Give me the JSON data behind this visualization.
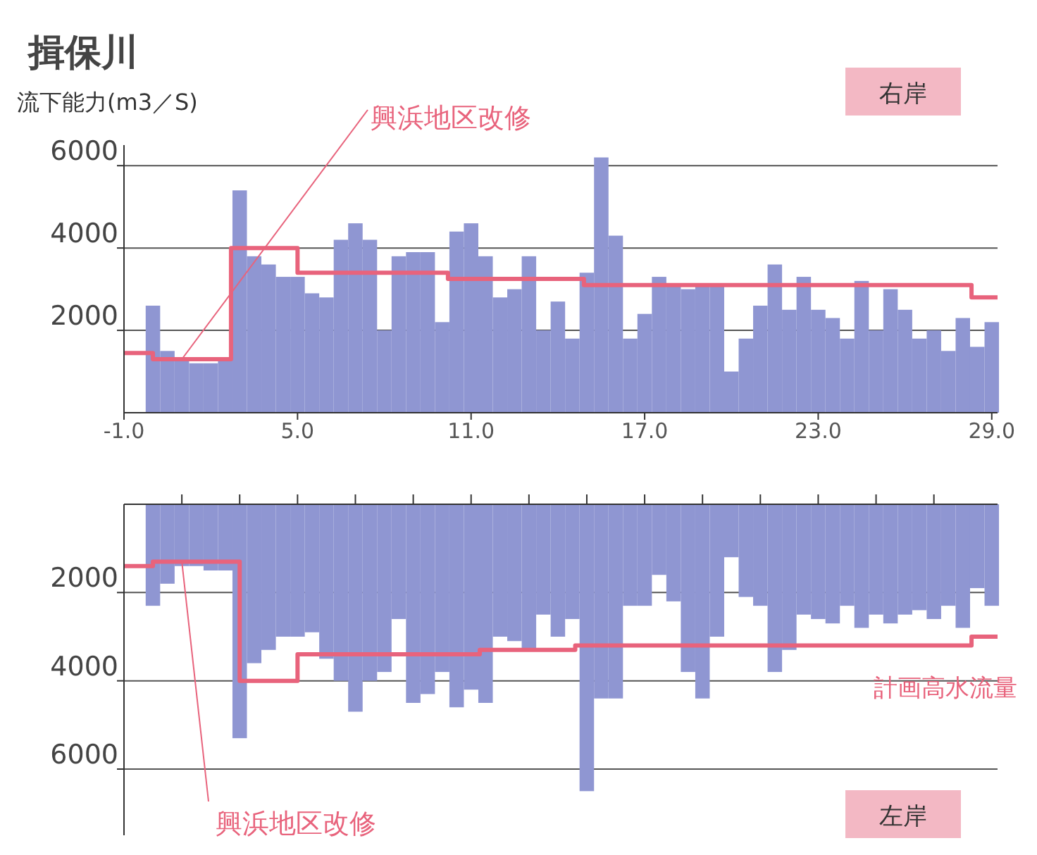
{
  "chart_data": [
    {
      "type": "bar",
      "title": "揖保川",
      "ylabel": "流下能力(m3／S)",
      "xlim": [
        -1,
        29.2
      ],
      "xticks": [
        {
          "value": -1,
          "label": "-1.0"
        },
        {
          "value": 5,
          "label": "5.0"
        },
        {
          "value": 11,
          "label": "11.0"
        },
        {
          "value": 17,
          "label": "17.0"
        },
        {
          "value": 23,
          "label": "23.0"
        },
        {
          "value": 29,
          "label": "29.0"
        }
      ],
      "ylim": [
        0,
        6500
      ],
      "yticks": [
        2000,
        4000,
        6000
      ],
      "grid": "y",
      "legend": false,
      "annotations": [
        "右岸",
        {
          "text": "興浜地区改修",
          "x": 1.0,
          "y": 1300
        }
      ],
      "series": [
        {
          "color": "#8f96d2",
          "x": [
            0,
            0.5,
            1,
            1.5,
            2,
            2.5,
            3,
            3.5,
            4,
            4.5,
            5,
            5.5,
            6,
            6.5,
            7,
            7.5,
            8,
            8.5,
            9,
            9.5,
            10,
            10.5,
            11,
            11.5,
            12,
            12.5,
            13,
            13.5,
            14,
            14.5,
            15,
            15.5,
            16,
            16.5,
            17,
            17.5,
            18,
            18.5,
            19,
            19.5,
            20,
            20.5,
            21,
            21.5,
            22,
            22.5,
            23,
            23.5,
            24,
            24.5,
            25,
            25.5,
            26,
            26.5,
            27,
            27.5,
            28,
            28.5,
            29
          ],
          "values": [
            2600,
            1500,
            1300,
            1200,
            1200,
            1300,
            5400,
            3800,
            3600,
            3300,
            3300,
            2900,
            2800,
            4200,
            4600,
            4200,
            2000,
            3800,
            3900,
            3900,
            2200,
            4400,
            4600,
            3800,
            2800,
            3000,
            3800,
            2000,
            2700,
            1800,
            3400,
            6200,
            4300,
            1800,
            2400,
            3300,
            3100,
            3000,
            3100,
            3100,
            1000,
            1800,
            2600,
            3600,
            2500,
            3300,
            2500,
            2300,
            1800,
            3200,
            2000,
            3000,
            2500,
            1800,
            2000,
            1500,
            2300,
            1600,
            2200
          ]
        },
        {
          "type": "step",
          "color": "#e8637c",
          "x": [
            -1,
            0,
            2.7,
            5.0,
            10.2,
            14.9,
            28.3,
            29.2
          ],
          "values": [
            1450,
            1300,
            4000,
            3400,
            3250,
            3100,
            2800,
            2800
          ]
        }
      ]
    },
    {
      "type": "bar",
      "xlim": [
        -1,
        29.2
      ],
      "xticks": [
        {
          "value": 1,
          "label": null
        },
        {
          "value": 3,
          "label": null
        },
        {
          "value": 5,
          "label": null
        },
        {
          "value": 7,
          "label": null
        },
        {
          "value": 9,
          "label": null
        },
        {
          "value": 11,
          "label": null
        },
        {
          "value": 13,
          "label": null
        },
        {
          "value": 15,
          "label": null
        },
        {
          "value": 17,
          "label": null
        },
        {
          "value": 19,
          "label": null
        },
        {
          "value": 21,
          "label": null
        },
        {
          "value": 23,
          "label": null
        },
        {
          "value": 25,
          "label": null
        },
        {
          "value": 27,
          "label": null
        }
      ],
      "ylim": [
        7500,
        0
      ],
      "yticks": [
        2000,
        4000,
        6000
      ],
      "grid": "y",
      "legend": false,
      "tick_labels": "y",
      "annotations": [
        "左岸",
        {
          "text": "興浜地区改修",
          "x": 1.0,
          "y": 1300
        }
      ],
      "series": [
        {
          "color": "#8f96d2",
          "x": [
            0,
            0.5,
            1,
            1.5,
            2,
            2.5,
            3,
            3.5,
            4,
            4.5,
            5,
            5.5,
            6,
            6.5,
            7,
            7.5,
            8,
            8.5,
            9,
            9.5,
            10,
            10.5,
            11,
            11.5,
            12,
            12.5,
            13,
            13.5,
            14,
            14.5,
            15,
            15.5,
            16,
            16.5,
            17,
            17.5,
            18,
            18.5,
            19,
            19.5,
            20,
            20.5,
            21,
            21.5,
            22,
            22.5,
            23,
            23.5,
            24,
            24.5,
            25,
            25.5,
            26,
            26.5,
            27,
            27.5,
            28,
            28.5,
            29
          ],
          "values": [
            2300,
            1800,
            1400,
            1400,
            1500,
            1500,
            5300,
            3600,
            3300,
            3000,
            3000,
            2900,
            3500,
            4000,
            4700,
            4000,
            3800,
            2600,
            4500,
            4300,
            3800,
            4600,
            4200,
            4500,
            3000,
            3100,
            3300,
            2500,
            3000,
            2600,
            6500,
            4400,
            4400,
            2300,
            2300,
            1600,
            2200,
            3800,
            4400,
            3000,
            1200,
            2100,
            2300,
            3800,
            3300,
            2500,
            2600,
            2700,
            2300,
            2800,
            2500,
            2700,
            2500,
            2400,
            2600,
            2300,
            2800,
            1900,
            2300
          ]
        },
        {
          "type": "step",
          "name": "計画高水流量",
          "color": "#e8637c",
          "x": [
            -1,
            0,
            3.0,
            5.0,
            11.3,
            14.6,
            28.3,
            29.2
          ],
          "values": [
            1400,
            1300,
            4000,
            3400,
            3300,
            3200,
            3000,
            3000
          ]
        }
      ]
    }
  ]
}
